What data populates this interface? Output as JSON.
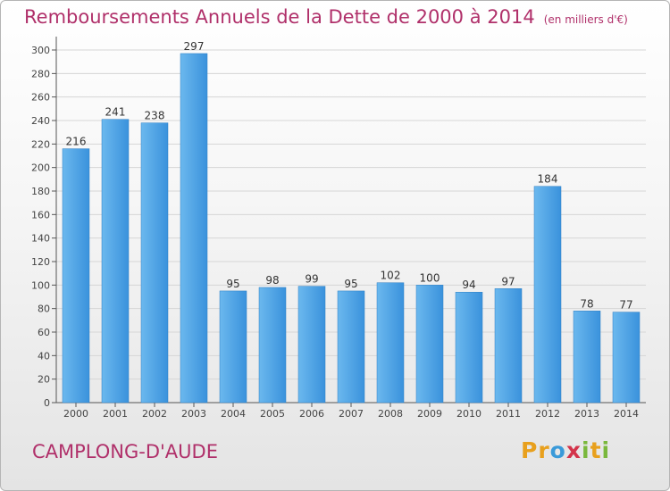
{
  "header": {
    "title": "Remboursements Annuels de la Dette de 2000 à 2014",
    "unit": "(en milliers d'€)"
  },
  "footer": {
    "commune": "CAMPLONG-D'AUDE",
    "logo": [
      "P",
      "r",
      "o",
      "x",
      "i",
      "t",
      "i"
    ],
    "logo_colors": [
      "#e8a01d",
      "#e8a01d",
      "#3a9ad9",
      "#d3334a",
      "#7ab83c",
      "#e8a01d",
      "#7ab83c"
    ]
  },
  "chart_data": {
    "type": "bar",
    "title": "Remboursements Annuels de la Dette de 2000 à 2014",
    "categories": [
      "2000",
      "2001",
      "2002",
      "2003",
      "2004",
      "2005",
      "2006",
      "2007",
      "2008",
      "2009",
      "2010",
      "2011",
      "2012",
      "2013",
      "2014"
    ],
    "values": [
      216,
      241,
      238,
      297,
      95,
      98,
      99,
      95,
      102,
      100,
      94,
      97,
      184,
      78,
      77
    ],
    "ylim": [
      0,
      300
    ],
    "yticks": [
      0,
      20,
      40,
      60,
      80,
      100,
      120,
      140,
      160,
      180,
      200,
      220,
      240,
      260,
      280,
      300
    ],
    "grid": true,
    "bar_color": "#3a8ad6",
    "bar_color_light": "#5aade8"
  }
}
